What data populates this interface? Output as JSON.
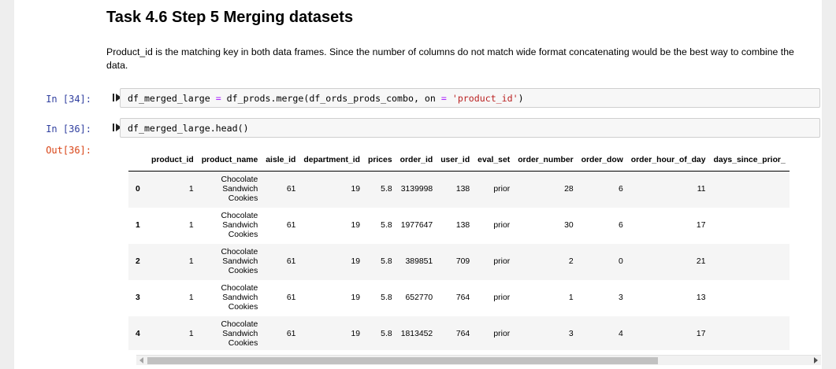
{
  "markdown": {
    "title": "Task 4.6 Step 5 Merging datasets",
    "text": "Product_id is the matching key in both data frames. Since the number of columns do not match wide format concatenating would be the best way to combine the data."
  },
  "cells": [
    {
      "prompt": "In [34]:",
      "code": {
        "var": "df_merged_large ",
        "eq": "=",
        "call": " df_prods.merge(df_ords_prods_combo, on ",
        "eq2": "=",
        "space": " ",
        "str": "'product_id'",
        "close": ")"
      }
    },
    {
      "prompt": "In [36]:",
      "code_text": "df_merged_large.head()",
      "out_prompt": "Out[36]:"
    }
  ],
  "table": {
    "columns": [
      "",
      "product_id",
      "product_name",
      "aisle_id",
      "department_id",
      "prices",
      "order_id",
      "user_id",
      "eval_set",
      "order_number",
      "order_dow",
      "order_hour_of_day",
      "days_since_prior_"
    ],
    "rows": [
      {
        "index": "0",
        "product_id": "1",
        "product_name": [
          "Chocolate",
          "Sandwich",
          "Cookies"
        ],
        "aisle_id": "61",
        "department_id": "19",
        "prices": "5.8",
        "order_id": "3139998",
        "user_id": "138",
        "eval_set": "prior",
        "order_number": "28",
        "order_dow": "6",
        "order_hour_of_day": "11"
      },
      {
        "index": "1",
        "product_id": "1",
        "product_name": [
          "Chocolate",
          "Sandwich",
          "Cookies"
        ],
        "aisle_id": "61",
        "department_id": "19",
        "prices": "5.8",
        "order_id": "1977647",
        "user_id": "138",
        "eval_set": "prior",
        "order_number": "30",
        "order_dow": "6",
        "order_hour_of_day": "17"
      },
      {
        "index": "2",
        "product_id": "1",
        "product_name": [
          "Chocolate",
          "Sandwich",
          "Cookies"
        ],
        "aisle_id": "61",
        "department_id": "19",
        "prices": "5.8",
        "order_id": "389851",
        "user_id": "709",
        "eval_set": "prior",
        "order_number": "2",
        "order_dow": "0",
        "order_hour_of_day": "21"
      },
      {
        "index": "3",
        "product_id": "1",
        "product_name": [
          "Chocolate",
          "Sandwich",
          "Cookies"
        ],
        "aisle_id": "61",
        "department_id": "19",
        "prices": "5.8",
        "order_id": "652770",
        "user_id": "764",
        "eval_set": "prior",
        "order_number": "1",
        "order_dow": "3",
        "order_hour_of_day": "13"
      },
      {
        "index": "4",
        "product_id": "1",
        "product_name": [
          "Chocolate",
          "Sandwich",
          "Cookies"
        ],
        "aisle_id": "61",
        "department_id": "19",
        "prices": "5.8",
        "order_id": "1813452",
        "user_id": "764",
        "eval_set": "prior",
        "order_number": "3",
        "order_dow": "4",
        "order_hour_of_day": "17"
      }
    ]
  },
  "icons": {
    "run_cell": "run-cell-icon",
    "scroll_left": "scroll-left-arrow-icon",
    "scroll_right": "scroll-right-arrow-icon"
  },
  "colors": {
    "in_prompt": "#303f9f",
    "out_prompt": "#d84315",
    "string": "#ba2121",
    "operator": "#aa22ff"
  }
}
